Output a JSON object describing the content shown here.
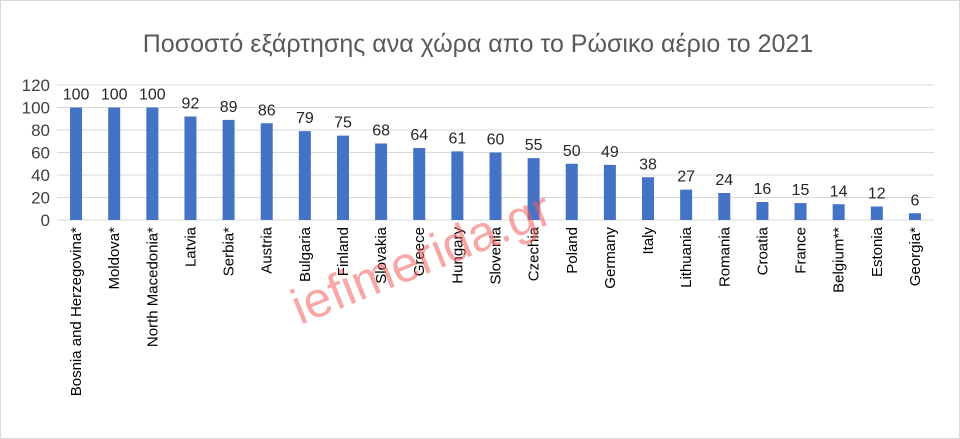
{
  "chart_data": {
    "type": "bar",
    "title": "Ποσοστό εξάρτησης ανα χώρα απο το Ρώσικο αέριο το 2021",
    "xlabel": "",
    "ylabel": "",
    "ylim": [
      0,
      120
    ],
    "yticks": [
      0,
      20,
      40,
      60,
      80,
      100,
      120
    ],
    "grid": true,
    "bar_color": "#4472c4",
    "categories": [
      "Bosnia and Herzegovina*",
      "Moldova*",
      "North Macedonia*",
      "Latvia",
      "Serbia*",
      "Austria",
      "Bulgaria",
      "Finland",
      "Slovakia",
      "Greece",
      "Hungary",
      "Slovenia",
      "Czechia",
      "Poland",
      "Germany",
      "Italy",
      "Lithuania",
      "Romania",
      "Croatia",
      "France",
      "Belgium**",
      "Estonia",
      "Georgia*"
    ],
    "values": [
      100,
      100,
      100,
      92,
      89,
      86,
      79,
      75,
      68,
      64,
      61,
      60,
      55,
      50,
      49,
      38,
      27,
      24,
      16,
      15,
      14,
      12,
      6
    ]
  },
  "watermark": {
    "text": "iefimerida.gr",
    "color": "#f25c5c"
  }
}
